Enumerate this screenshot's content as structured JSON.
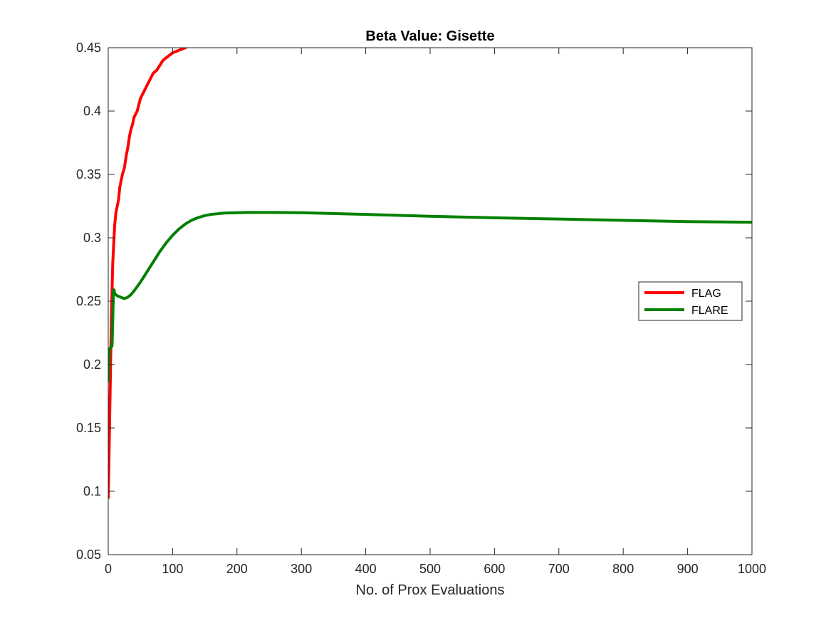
{
  "chart_data": {
    "type": "line",
    "title": "Beta Value: Gisette",
    "xlabel": "No. of Prox Evaluations",
    "ylabel": "",
    "xlim": [
      0,
      1000
    ],
    "ylim": [
      0.05,
      0.45
    ],
    "xticks": [
      0,
      100,
      200,
      300,
      400,
      500,
      600,
      700,
      800,
      900,
      1000
    ],
    "yticks": [
      0.05,
      0.1,
      0.15,
      0.2,
      0.25,
      0.3,
      0.35,
      0.4,
      0.45
    ],
    "xtick_labels": [
      "0",
      "100",
      "200",
      "300",
      "400",
      "500",
      "600",
      "700",
      "800",
      "900",
      "1000"
    ],
    "ytick_labels": [
      "0.05",
      "0.1",
      "0.15",
      "0.2",
      "0.25",
      "0.3",
      "0.35",
      "0.4",
      "0.45"
    ],
    "grid": false,
    "legend_position": "right",
    "series": [
      {
        "name": "FLAG",
        "color": "#ff0000",
        "x": [
          0,
          1,
          2,
          3,
          4,
          5,
          6,
          7,
          8,
          9,
          10,
          12,
          14,
          16,
          18,
          20,
          22,
          25,
          28,
          30,
          33,
          35,
          38,
          40,
          45,
          50,
          55,
          60,
          65,
          70,
          75,
          80,
          85,
          90,
          95,
          100,
          105,
          110,
          115,
          120,
          123
        ],
        "y": [
          0.095,
          0.12,
          0.15,
          0.18,
          0.21,
          0.24,
          0.26,
          0.28,
          0.29,
          0.3,
          0.31,
          0.32,
          0.325,
          0.33,
          0.34,
          0.345,
          0.35,
          0.355,
          0.365,
          0.37,
          0.38,
          0.385,
          0.39,
          0.395,
          0.4,
          0.41,
          0.415,
          0.42,
          0.425,
          0.43,
          0.432,
          0.436,
          0.44,
          0.442,
          0.444,
          0.446,
          0.447,
          0.448,
          0.449,
          0.45,
          0.451
        ]
      },
      {
        "name": "FLARE",
        "color": "#008000",
        "x": [
          0,
          1,
          2,
          3,
          4,
          5,
          6,
          7,
          8,
          9,
          10,
          12,
          15,
          20,
          25,
          30,
          35,
          40,
          50,
          60,
          70,
          80,
          90,
          100,
          110,
          120,
          130,
          140,
          150,
          160,
          170,
          180,
          200,
          220,
          250,
          300,
          400,
          500,
          600,
          700,
          800,
          900,
          1000
        ],
        "y": [
          0.187,
          0.2,
          0.212,
          0.213,
          0.214,
          0.214,
          0.215,
          0.235,
          0.258,
          0.259,
          0.256,
          0.255,
          0.254,
          0.253,
          0.252,
          0.253,
          0.255,
          0.258,
          0.265,
          0.273,
          0.281,
          0.289,
          0.296,
          0.302,
          0.307,
          0.311,
          0.314,
          0.316,
          0.3175,
          0.3185,
          0.319,
          0.3195,
          0.3198,
          0.32,
          0.32,
          0.3198,
          0.3185,
          0.317,
          0.3158,
          0.3148,
          0.3138,
          0.3128,
          0.3123
        ]
      }
    ]
  }
}
